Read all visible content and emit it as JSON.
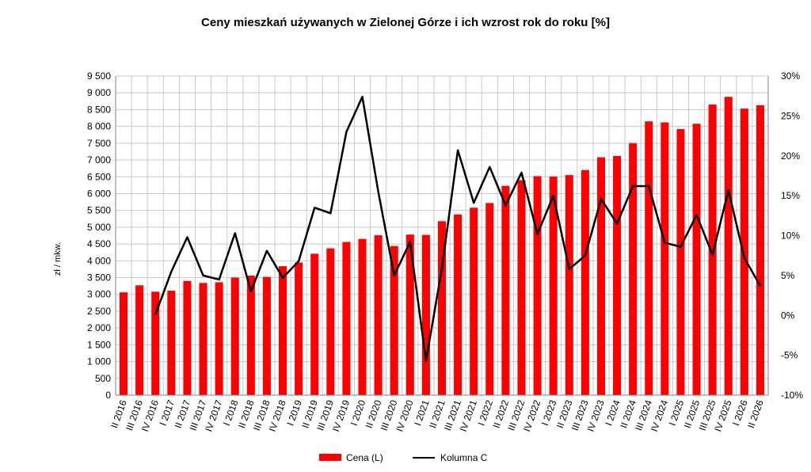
{
  "chart_data": {
    "type": "bar",
    "title": "Ceny mieszkań używanych w Zielonej Górze i ich wzrost rok do roku [%]",
    "ylabel": "zł / mkw.",
    "y2label": "",
    "categories": [
      "II 2016",
      "III 2016",
      "IV 2016",
      "I 2017",
      "II 2017",
      "III 2017",
      "IV 2017",
      "I 2018",
      "II 2018",
      "III 2018",
      "IV 2018",
      "I 2019",
      "II 2019",
      "III 2019",
      "IV 2019",
      "I 2020",
      "II 2020",
      "III 2020",
      "IV 2020",
      "I 2021",
      "II 2021",
      "III 2021",
      "IV 2021",
      "I 2022",
      "II 2022",
      "III 2022",
      "IV 2022",
      "I 2023",
      "II 2023",
      "III 2023",
      "IV 2023",
      "I 2024",
      "II 2024",
      "III 2024",
      "IV 2024",
      "I 2025",
      "II 2025",
      "III 2025",
      "IV 2025",
      "I 2026",
      "II 2026"
    ],
    "ylim": [
      0,
      9500
    ],
    "y_ticks": [
      0,
      500,
      1000,
      1500,
      2000,
      2500,
      3000,
      3500,
      4000,
      4500,
      5000,
      5500,
      6000,
      6500,
      7000,
      7500,
      8000,
      8500,
      9000,
      9500
    ],
    "y_tick_labels": [
      "0",
      "500",
      "1 000",
      "1 500",
      "2 000",
      "2 500",
      "3 000",
      "3 500",
      "4 000",
      "4 500",
      "5 000",
      "5 500",
      "6 000",
      "6 500",
      "7 000",
      "7 500",
      "8 000",
      "8 500",
      "9 000",
      "9 500"
    ],
    "y2lim": [
      -10,
      30
    ],
    "y2_ticks": [
      -10,
      -5,
      0,
      5,
      10,
      15,
      20,
      25,
      30
    ],
    "y2_tick_labels": [
      "-10%",
      "-5%",
      "0%",
      "5%",
      "10%",
      "15%",
      "20%",
      "25%",
      "30%"
    ],
    "series": [
      {
        "name": "Cena (L)",
        "type": "bar",
        "axis": "left",
        "color": "#ff0000",
        "values": [
          3060,
          3270,
          3080,
          3110,
          3400,
          3340,
          3360,
          3500,
          3560,
          3520,
          3840,
          3950,
          4210,
          4370,
          4560,
          4650,
          4760,
          4440,
          4780,
          4770,
          5180,
          5380,
          5580,
          5720,
          6230,
          6400,
          6520,
          6510,
          6550,
          6700,
          7080,
          7120,
          7500,
          8150,
          8120,
          7920,
          8080,
          8650,
          8880,
          8530,
          8630
        ]
      },
      {
        "name": "Kolumna C",
        "type": "line",
        "axis": "right",
        "color": "#000000",
        "values": [
          null,
          null,
          0.1,
          5.5,
          9.8,
          5.0,
          4.5,
          10.3,
          3.0,
          8.1,
          4.7,
          6.8,
          13.5,
          12.8,
          23.0,
          27.4,
          15.5,
          5.0,
          9.2,
          -5.7,
          5.9,
          20.7,
          14.1,
          18.6,
          13.8,
          17.9,
          10.2,
          15.0,
          5.8,
          7.5,
          14.6,
          11.5,
          16.2,
          16.2,
          9.1,
          8.6,
          12.6,
          7.6,
          15.7,
          7.2,
          3.7
        ]
      }
    ],
    "grid": true,
    "legend_position": "bottom"
  }
}
